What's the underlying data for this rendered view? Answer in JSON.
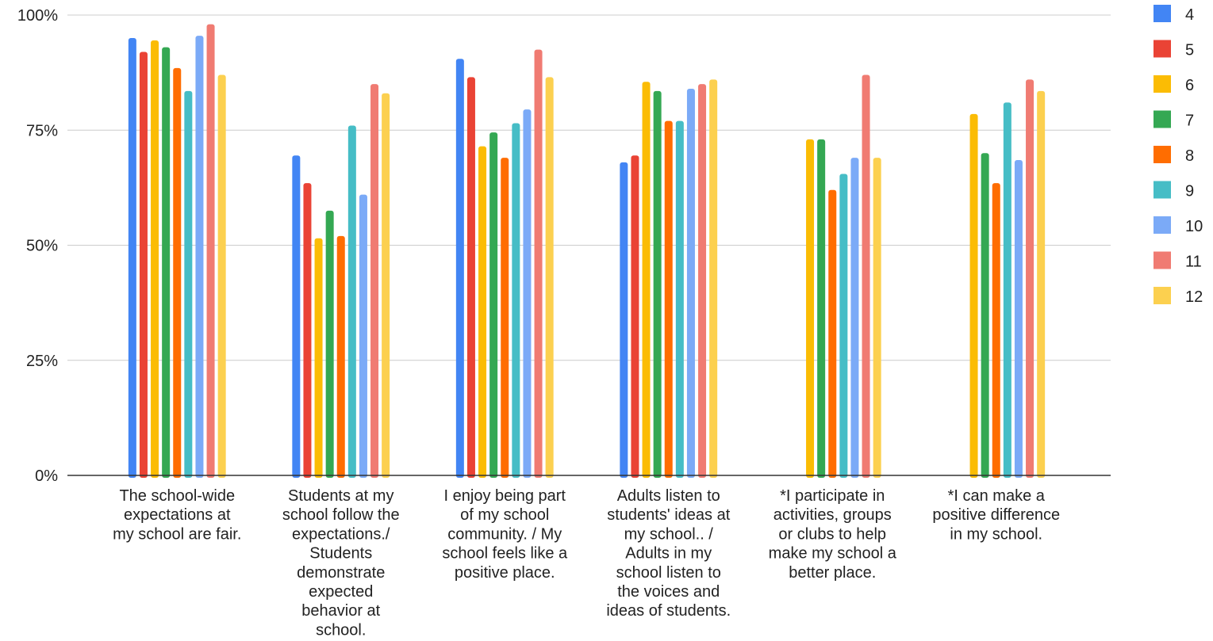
{
  "chart_data": {
    "type": "bar",
    "title": "",
    "xlabel": "",
    "ylabel": "",
    "ylim": [
      0,
      100
    ],
    "y_ticks": [
      {
        "value": 0,
        "label": "0%"
      },
      {
        "value": 25,
        "label": "25%"
      },
      {
        "value": 50,
        "label": "50%"
      },
      {
        "value": 75,
        "label": "75%"
      },
      {
        "value": 100,
        "label": "100%"
      }
    ],
    "grid": true,
    "legend_position": "right",
    "categories": [
      "The school-wide expectations at my school are fair.",
      "Students at my school follow the expectations./ Students demonstrate expected behavior at school.",
      "I enjoy being part of my school community. / My school feels like a positive place.",
      "Adults listen to students' ideas at my school.. / Adults in my school listen to the voices and ideas of students.",
      "*I participate in activities, groups or clubs to help make my school a better place.",
      "*I can make a positive difference in my school."
    ],
    "category_label_lines": [
      [
        "The school-wide",
        "expectations at",
        "my school are fair."
      ],
      [
        "Students at my",
        "school follow the",
        "expectations./",
        "Students",
        "demonstrate",
        "expected",
        "behavior at",
        "school."
      ],
      [
        "I enjoy being part",
        "of my school",
        "community. / My",
        "school feels like a",
        "positive place."
      ],
      [
        "Adults listen to",
        "students' ideas at",
        "my school.. /",
        "Adults in my",
        "school listen to",
        "the voices and",
        "ideas of students."
      ],
      [
        "*I participate in",
        "activities, groups",
        "or clubs to help",
        "make my school a",
        "better place."
      ],
      [
        "*I can make a",
        "positive difference",
        "in my school."
      ]
    ],
    "series": [
      {
        "name": "4",
        "color": "#4285F4",
        "values": [
          95,
          69.5,
          90.5,
          68,
          null,
          null
        ]
      },
      {
        "name": "5",
        "color": "#EA4335",
        "values": [
          92,
          63.5,
          86.5,
          69.5,
          null,
          null
        ]
      },
      {
        "name": "6",
        "color": "#FBBC04",
        "values": [
          94.5,
          51.5,
          71.5,
          85.5,
          73,
          78.5
        ]
      },
      {
        "name": "7",
        "color": "#34A853",
        "values": [
          93,
          57.5,
          74.5,
          83.5,
          73,
          70
        ]
      },
      {
        "name": "8",
        "color": "#FF6D01",
        "values": [
          88.5,
          52,
          69,
          77,
          62,
          63.5
        ]
      },
      {
        "name": "9",
        "color": "#46BDC6",
        "values": [
          83.5,
          76,
          76.5,
          77,
          65.5,
          81
        ]
      },
      {
        "name": "10",
        "color": "#7BAAF7",
        "values": [
          95.5,
          61,
          79.5,
          84,
          69,
          68.5
        ]
      },
      {
        "name": "11",
        "color": "#F07B72",
        "values": [
          98,
          85,
          92.5,
          85,
          87,
          86
        ]
      },
      {
        "name": "12",
        "color": "#FCD04F",
        "values": [
          87,
          83,
          86.5,
          86,
          69,
          83.5
        ]
      }
    ]
  }
}
